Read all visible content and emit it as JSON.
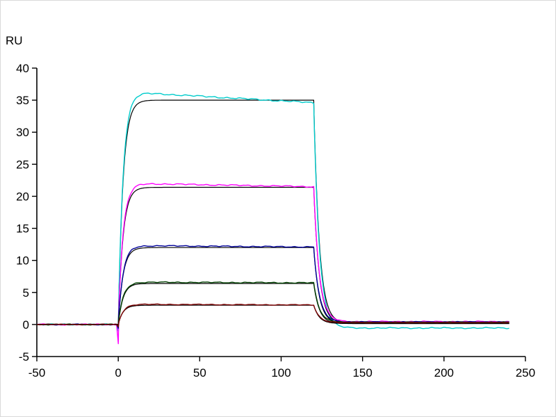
{
  "chart_data": {
    "type": "line",
    "title": "",
    "xlabel": "",
    "ylabel": "RU",
    "xlim": [
      -50,
      250
    ],
    "ylim": [
      -5,
      40
    ],
    "xticks": [
      -50,
      0,
      50,
      100,
      150,
      200,
      250
    ],
    "yticks": [
      -5,
      0,
      5,
      10,
      15,
      20,
      25,
      30,
      35,
      40
    ],
    "grid": false,
    "legend_position": "none",
    "model": {
      "t_start": -50,
      "t_on": 0,
      "t_off": 120,
      "t_end": 240,
      "tau_assoc": 2.9,
      "tau_dissoc": 3.4,
      "baseline": 0
    },
    "series": [
      {
        "name": "fit-black-35",
        "role": "fit",
        "color": "#000000",
        "plateau": 35.0,
        "final": 0.2
      },
      {
        "name": "data-cyan",
        "role": "data",
        "color": "#00cccc",
        "plateau": 36.2,
        "plateau_end": 34.6,
        "dip": -1.0,
        "final": -0.55,
        "noise": 0.14
      },
      {
        "name": "fit-black-21",
        "role": "fit",
        "color": "#000000",
        "plateau": 21.4,
        "final": 0.2
      },
      {
        "name": "data-magenta",
        "role": "data",
        "color": "#ff00ff",
        "plateau": 22.0,
        "plateau_end": 21.5,
        "dip": -3.0,
        "final": 0.45,
        "noise": 0.12
      },
      {
        "name": "fit-black-12",
        "role": "fit",
        "color": "#000000",
        "plateau": 12.0,
        "final": 0.2
      },
      {
        "name": "data-blue",
        "role": "data",
        "color": "#000099",
        "plateau": 12.3,
        "plateau_end": 12.1,
        "dip": -0.6,
        "final": 0.4,
        "noise": 0.1
      },
      {
        "name": "fit-black-6",
        "role": "fit",
        "color": "#000000",
        "plateau": 6.4,
        "final": 0.15
      },
      {
        "name": "data-darkgreen",
        "role": "data",
        "color": "#004000",
        "plateau": 6.6,
        "plateau_end": 6.5,
        "dip": -0.4,
        "final": 0.35,
        "noise": 0.1
      },
      {
        "name": "fit-black-3",
        "role": "fit",
        "color": "#000000",
        "plateau": 3.0,
        "final": 0.15
      },
      {
        "name": "data-darkred",
        "role": "data",
        "color": "#7b0000",
        "plateau": 3.15,
        "plateau_end": 3.05,
        "dip": -0.3,
        "final": 0.3,
        "noise": 0.08
      }
    ]
  }
}
